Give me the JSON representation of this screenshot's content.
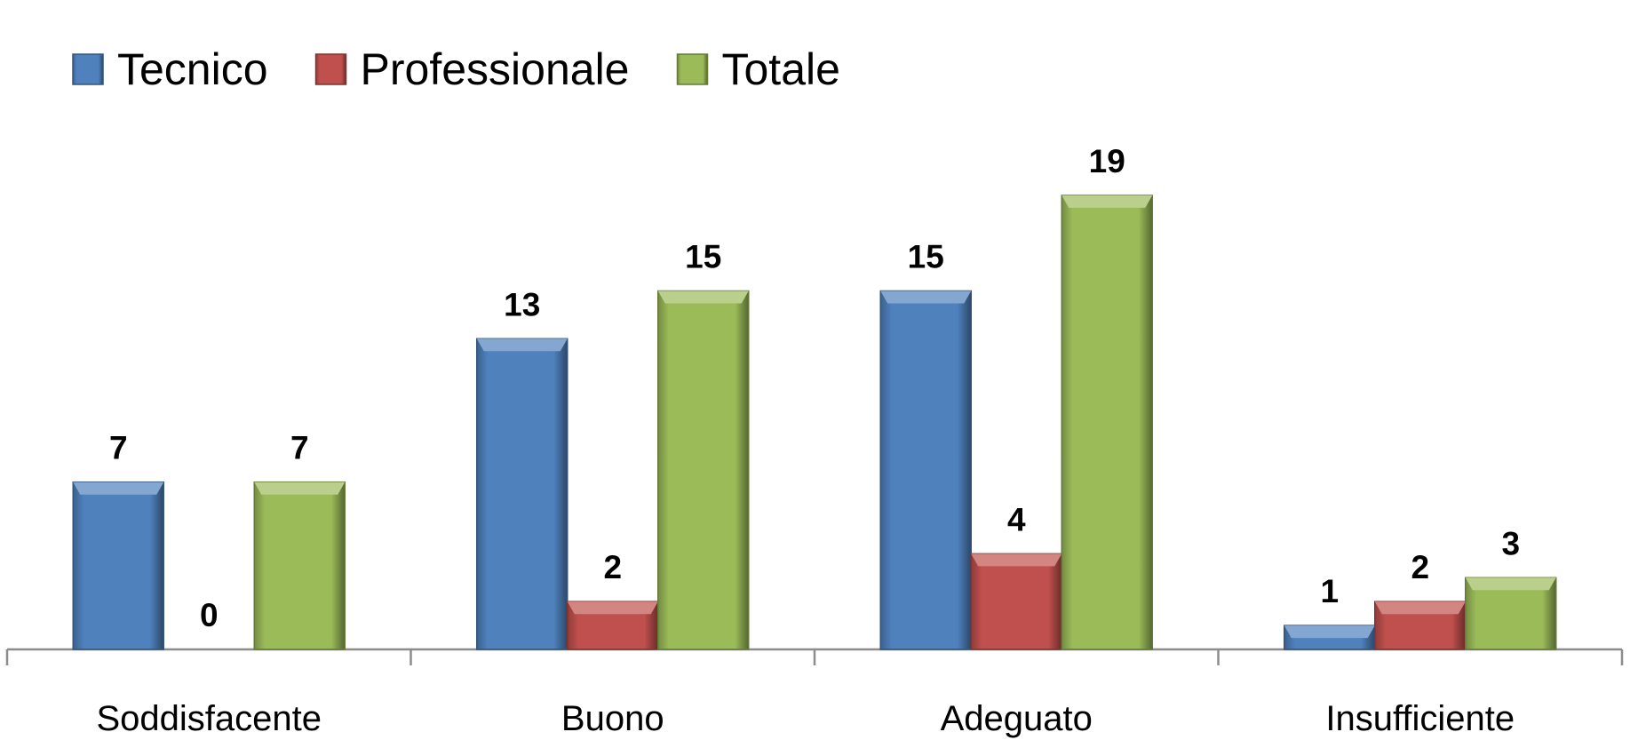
{
  "colors": {
    "background": "#ffffff",
    "axis": "#8c8c8c",
    "text": "#000000"
  },
  "chart_data": {
    "type": "bar",
    "categories": [
      "Soddisfacente",
      "Buono",
      "Adeguato",
      "Insufficiente"
    ],
    "series": [
      {
        "name": "Tecnico",
        "values": [
          7,
          13,
          15,
          1
        ],
        "color": "#4f81bd"
      },
      {
        "name": "Professionale",
        "values": [
          0,
          2,
          4,
          2
        ],
        "color": "#c0504d"
      },
      {
        "name": "Totale",
        "values": [
          7,
          15,
          19,
          3
        ],
        "color": "#9bbb59"
      }
    ],
    "title": "",
    "xlabel": "",
    "ylabel": "",
    "ylim": [
      0,
      20
    ],
    "grid": false,
    "legend": "top-left",
    "data_labels": true,
    "bar_style": "3d-bevel"
  }
}
